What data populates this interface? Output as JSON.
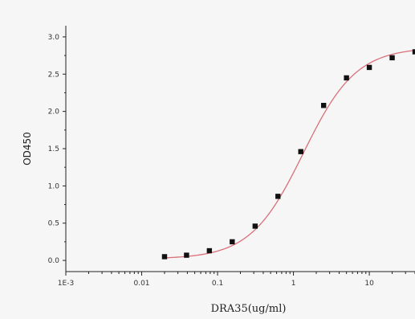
{
  "chart_data": {
    "type": "scatter",
    "xlabel": "DRA35(ug/ml)",
    "ylabel": "OD450",
    "x_scale": "log",
    "xlim": [
      0.001,
      40
    ],
    "ylim": [
      -0.15,
      3.15
    ],
    "x_ticks": [
      0.001,
      0.01,
      0.1,
      1,
      10
    ],
    "x_tick_labels": [
      "1E-3",
      "0.01",
      "0.1",
      "1",
      "10"
    ],
    "y_ticks": [
      0,
      0.5,
      1,
      1.5,
      2,
      2.5,
      3
    ],
    "y_tick_labels": [
      "0.0",
      "0.5",
      "1.0",
      "1.5",
      "2.0",
      "2.5",
      "3.0"
    ],
    "grid": false,
    "series": [
      {
        "x": [
          0.02,
          0.039,
          0.078,
          0.156,
          0.3125,
          0.625,
          1.25,
          2.5,
          5,
          10,
          20,
          40
        ],
        "y": [
          0.05,
          0.07,
          0.13,
          0.25,
          0.46,
          0.86,
          1.46,
          2.08,
          2.45,
          2.59,
          2.72,
          2.8
        ],
        "marker": "square",
        "fit": "4PL",
        "fit_color": "#d9707a",
        "marker_color": "#111111"
      }
    ]
  }
}
